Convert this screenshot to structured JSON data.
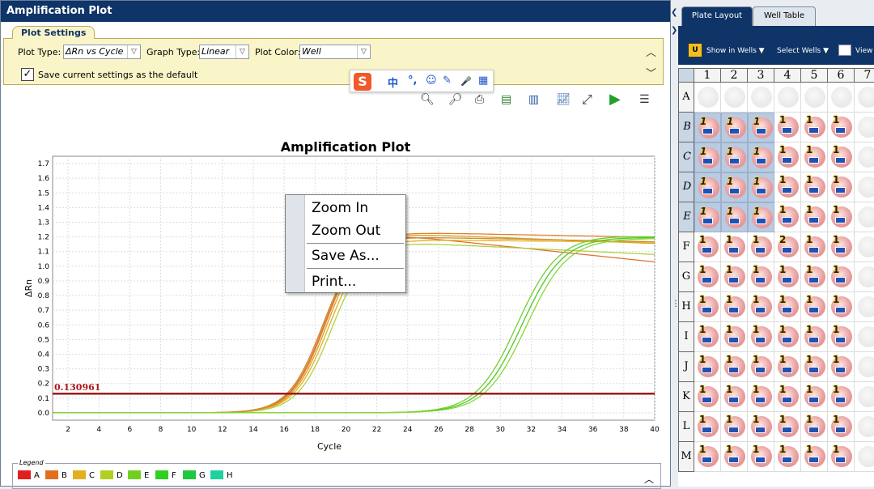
{
  "left_panel": {
    "title": "Amplification Plot",
    "settings_tab": "Plot Settings",
    "plot_type": {
      "label": "Plot Type:",
      "value": "ΔRn vs Cycle"
    },
    "graph_type": {
      "label": "Graph Type:",
      "value": "Linear"
    },
    "plot_color": {
      "label": "Plot Color:",
      "value": "Well"
    },
    "save_default": {
      "label": "Save current settings as the default",
      "checked": true
    },
    "icons": [
      "zoom-in-icon",
      "zoom-out-icon",
      "print-icon",
      "export-icon",
      "copy-icon",
      "chart-icon",
      "fit-icon",
      "run-icon",
      "list-icon"
    ]
  },
  "ime_toolbar": {
    "logo": "S",
    "items": [
      "中",
      "°,",
      "☺",
      "✎",
      "🎤",
      "▦"
    ]
  },
  "context_menu": {
    "items": [
      "Zoom In",
      "Zoom Out",
      "Save As...",
      "Print..."
    ]
  },
  "chart_data": {
    "type": "line",
    "title": "Amplification Plot",
    "xlabel": "Cycle",
    "ylabel": "ΔRn",
    "xlim": [
      1,
      40
    ],
    "ylim": [
      -0.05,
      1.75
    ],
    "xticks": [
      2,
      4,
      6,
      8,
      10,
      12,
      14,
      16,
      18,
      20,
      22,
      24,
      26,
      28,
      30,
      32,
      34,
      36,
      38,
      40
    ],
    "yticks": [
      0.0,
      0.1,
      0.2,
      0.3,
      0.4,
      0.5,
      0.6,
      0.7,
      0.8,
      0.9,
      1.0,
      1.1,
      1.2,
      1.3,
      1.4,
      1.5,
      1.6,
      1.7
    ],
    "grid": true,
    "threshold": {
      "value": 0.130961,
      "label": "0.130961",
      "color": "#9b1b1b"
    },
    "series": [
      {
        "color": "#e07030",
        "mid": 18.6,
        "k": 0.9,
        "max": 1.21,
        "drift": -0.011
      },
      {
        "color": "#d8a020",
        "mid": 18.8,
        "k": 0.9,
        "max": 1.22,
        "drift": -0.004
      },
      {
        "color": "#e6b020",
        "mid": 18.9,
        "k": 0.9,
        "max": 1.18,
        "drift": -0.001
      },
      {
        "color": "#b0d040",
        "mid": 19.1,
        "k": 0.9,
        "max": 1.16,
        "drift": -0.005
      },
      {
        "color": "#e08030",
        "mid": 18.7,
        "k": 0.9,
        "max": 1.23,
        "drift": -0.002
      },
      {
        "color": "#c89030",
        "mid": 18.5,
        "k": 0.9,
        "max": 1.2,
        "drift": -0.002
      },
      {
        "color": "#70d030",
        "mid": 31.1,
        "k": 0.75,
        "max": 1.21,
        "drift": -0.002
      },
      {
        "color": "#50c828",
        "mid": 31.4,
        "k": 0.75,
        "max": 1.2,
        "drift": -0.001
      },
      {
        "color": "#88d838",
        "mid": 31.7,
        "k": 0.75,
        "max": 1.19,
        "drift": 0.0
      }
    ]
  },
  "legend": {
    "title": "Legend",
    "items": [
      {
        "label": "A",
        "color": "#e02020"
      },
      {
        "label": "B",
        "color": "#e07020"
      },
      {
        "label": "C",
        "color": "#e0b020"
      },
      {
        "label": "D",
        "color": "#b0d020"
      },
      {
        "label": "E",
        "color": "#70d020"
      },
      {
        "label": "F",
        "color": "#30d020"
      },
      {
        "label": "G",
        "color": "#20c840"
      },
      {
        "label": "H",
        "color": "#20d0a0"
      }
    ]
  },
  "right_panel": {
    "tabs": [
      "Plate Layout",
      "Well Table"
    ],
    "toolbar": {
      "show_in_wells": "Show in Wells ▼",
      "select_wells": "Select Wells ▼",
      "view": "View"
    },
    "columns": [
      "1",
      "2",
      "3",
      "4",
      "5",
      "6",
      "7"
    ],
    "rows": [
      "A",
      "B",
      "C",
      "D",
      "E",
      "F",
      "G",
      "H",
      "I",
      "J",
      "K",
      "L",
      "M"
    ],
    "selected_rows": [
      "B",
      "C",
      "D",
      "E"
    ],
    "well_number": "1",
    "special_well": {
      "row": "F",
      "col": "4",
      "number": "2"
    }
  }
}
